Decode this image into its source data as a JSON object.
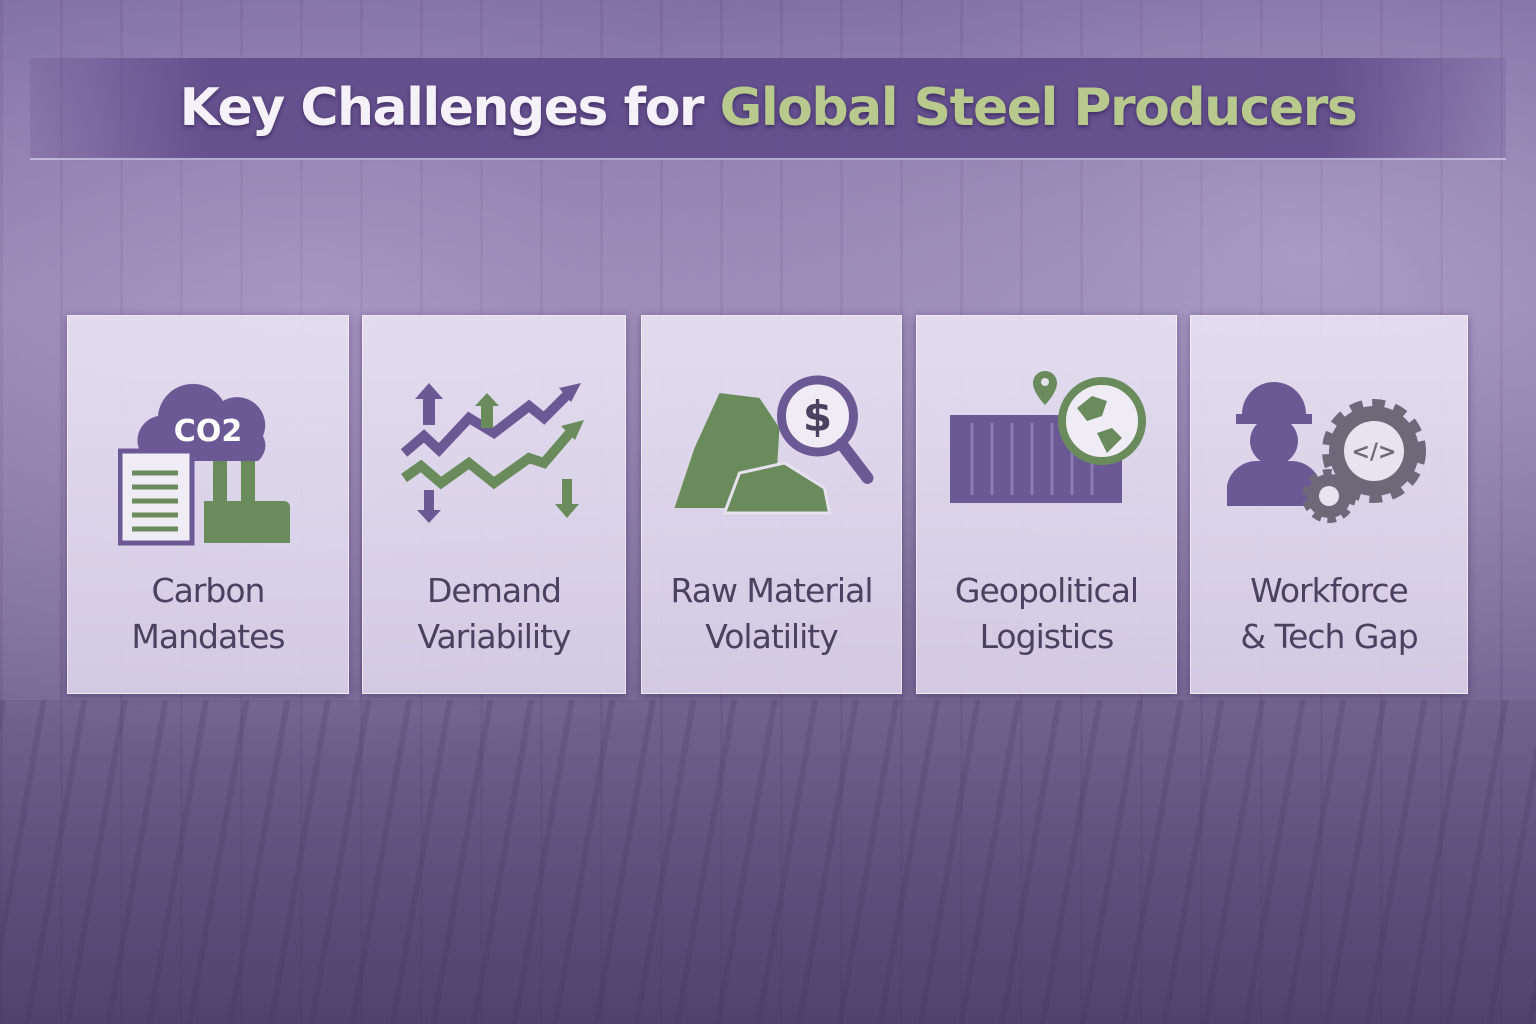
{
  "title": {
    "main": "Key Challenges for ",
    "accent": "Global Steel Producers"
  },
  "colors": {
    "purple": "#6b5996",
    "green": "#6a8c5c",
    "title_accent": "#b8c98e",
    "text": "#4b4160"
  },
  "cards": [
    {
      "icon": "co2-cloud-factory-icon",
      "icon_text": "CO2",
      "line1": "Carbon",
      "line2": "Mandates"
    },
    {
      "icon": "fluctuating-trend-arrows-icon",
      "line1": "Demand",
      "line2": "Variability"
    },
    {
      "icon": "rocks-dollar-magnifier-icon",
      "icon_text": "$",
      "line1": "Raw Material",
      "line2": "Volatility"
    },
    {
      "icon": "container-globe-pin-icon",
      "line1": "Geopolitical",
      "line2": "Logistics"
    },
    {
      "icon": "worker-gears-code-icon",
      "icon_text": "</>",
      "line1": "Workforce",
      "line2": "& Tech Gap"
    }
  ]
}
